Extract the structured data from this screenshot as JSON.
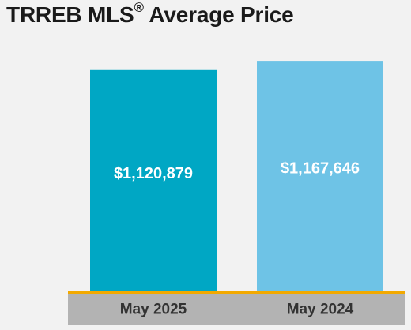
{
  "header": {
    "title_main": "TRREB MLS",
    "title_mark": "®",
    "title_rest": " Average Price"
  },
  "colors": {
    "background": "#f2f2f2",
    "baseline": "#f2a900",
    "axis_band": "#b3b3b3",
    "bar_text": "#ffffff",
    "label_text": "#333333"
  },
  "chart_data": {
    "type": "bar",
    "title": "TRREB MLS® Average Price",
    "categories": [
      "May 2025",
      "May 2024"
    ],
    "values": [
      1120879,
      1167646
    ],
    "data_labels": [
      "$1,120,879",
      "$1,167,646"
    ],
    "colors": [
      "#00a7c4",
      "#6ec3e6"
    ],
    "ylim": [
      0,
      1300000
    ],
    "grid": false,
    "legend": "none"
  }
}
